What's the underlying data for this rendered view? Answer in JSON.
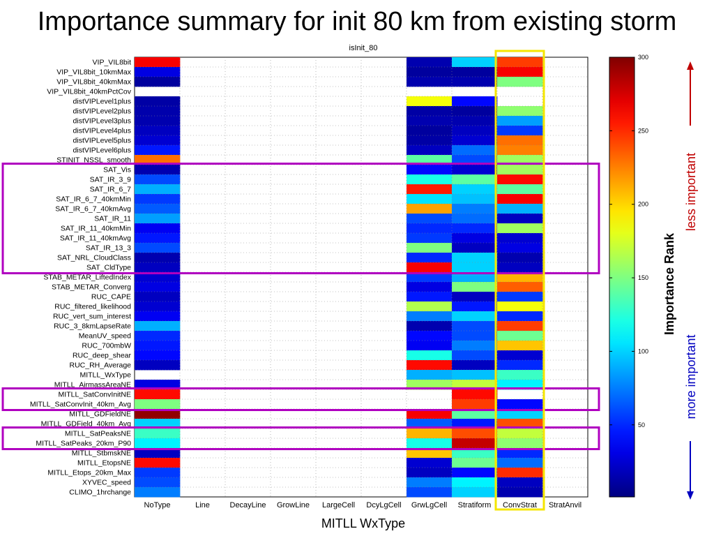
{
  "slide_title": "Importance summary for init 80 km from existing storm",
  "chart_data": {
    "type": "heatmap",
    "title": "isInit_80",
    "xlabel": "MITLL WxType",
    "colorbar_label": "Importance Rank",
    "colorbar_range": [
      1,
      300
    ],
    "colorbar_ticks": [
      50,
      100,
      150,
      200,
      250,
      300
    ],
    "colormap": "jet",
    "annotations": {
      "top": "less important",
      "bottom": "more important"
    },
    "highlight_colors": {
      "rows": "#b000c0",
      "column": "#f5e600"
    },
    "columns": [
      "NoType",
      "Line",
      "DecayLine",
      "GrowLine",
      "LargeCell",
      "DcyLgCell",
      "GrwLgCell",
      "Stratiform",
      "ConvStrat",
      "StratAnvil"
    ],
    "highlighted_column": "ConvStrat",
    "rows": [
      "VIP_VIL8bit",
      "VIP_VIL8bit_10kmMax",
      "VIP_VIL8bit_40kmMax",
      "VIP_VIL8bit_40kmPctCov",
      "distVIPLevel1plus",
      "distVIPLevel2plus",
      "distVIPLevel3plus",
      "distVIPLevel4plus",
      "distVIPLevel5plus",
      "distVIPLevel6plus",
      "STINIT_NSSL_smooth",
      "SAT_Vis",
      "SAT_IR_3_9",
      "SAT_IR_6_7",
      "SAT_IR_6_7_40kmMin",
      "SAT_IR_6_7_40kmAvg",
      "SAT_IR_11",
      "SAT_IR_11_40kmMin",
      "SAT_IR_11_40kmAvg",
      "SAT_IR_13_3",
      "SAT_NRL_CloudClass",
      "SAT_CldType",
      "STAB_METAR_LiftedIndex",
      "STAB_METAR_Converg",
      "RUC_CAPE",
      "RUC_filtered_likelihood",
      "RUC_vert_sum_interest",
      "RUC_3_8kmLapseRate",
      "MeanUV_speed",
      "RUC_700mbW",
      "RUC_deep_shear",
      "RUC_RH_Average",
      "MITLL_WxType",
      "MITLL_AirmassAreaNE",
      "MITLL_SatConvInitNE",
      "MITLL_SatConvInit_40km_Avg",
      "MITLL_GDFieldNE",
      "MITLL_GDField_40km_Avg",
      "MITLL_SatPeaksNE",
      "MITLL_SatPeaks_20km_P90",
      "MITLL_StbmskNE",
      "MITLL_EtopsNE",
      "MITLL_Etops_20km_Max",
      "XYVEC_speed",
      "CLIMO_1hrchange"
    ],
    "highlighted_row_groups": [
      [
        "SAT_Vis",
        "SAT_CldType"
      ],
      [
        "MITLL_SatConvInitNE",
        "MITLL_SatConvInit_40km_Avg"
      ],
      [
        "MITLL_SatPeaksNE",
        "MITLL_SatPeaks_20km_P90"
      ]
    ],
    "values": {
      "NoType": [
        265,
        30,
        10,
        null,
        12,
        14,
        15,
        20,
        25,
        45,
        230,
        15,
        60,
        90,
        55,
        65,
        85,
        35,
        45,
        60,
        15,
        20,
        25,
        30,
        20,
        25,
        35,
        90,
        50,
        45,
        40,
        20,
        null,
        30,
        260,
        150,
        295,
        100,
        130,
        110,
        20,
        260,
        55,
        60,
        75
      ],
      "GrwLgCell": [
        15,
        10,
        15,
        null,
        185,
        12,
        15,
        10,
        12,
        20,
        140,
        40,
        120,
        255,
        105,
        215,
        60,
        50,
        55,
        150,
        50,
        265,
        55,
        30,
        45,
        165,
        75,
        15,
        40,
        35,
        120,
        260,
        90,
        160,
        null,
        null,
        265,
        65,
        210,
        120,
        205,
        25,
        20,
        75,
        60
      ],
      "Stratiform": [
        100,
        10,
        15,
        null,
        40,
        10,
        15,
        20,
        25,
        70,
        60,
        25,
        140,
        100,
        95,
        75,
        70,
        50,
        30,
        20,
        100,
        100,
        90,
        150,
        20,
        45,
        100,
        60,
        60,
        75,
        60,
        20,
        95,
        170,
        260,
        245,
        140,
        45,
        240,
        280,
        130,
        145,
        40,
        110,
        100
      ],
      "ConvStrat": [
        245,
        265,
        150,
        null,
        null,
        155,
        85,
        55,
        230,
        225,
        160,
        160,
        260,
        140,
        265,
        90,
        20,
        160,
        25,
        30,
        15,
        20,
        210,
        235,
        55,
        185,
        50,
        245,
        145,
        205,
        25,
        50,
        130,
        110,
        null,
        40,
        100,
        240,
        170,
        155,
        50,
        70,
        250,
        20,
        15
      ]
    }
  }
}
